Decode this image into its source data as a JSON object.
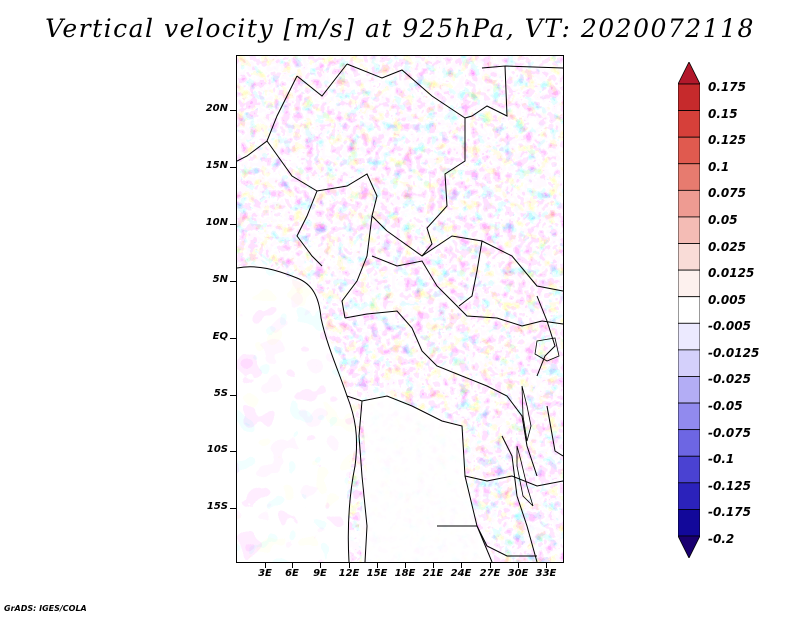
{
  "title": "Vertical velocity [m/s] at 925hPa, VT: 2020072118",
  "credit": "GrADS: IGES/COLA",
  "lat_labels": [
    "20N",
    "15N",
    "10N",
    "5N",
    "EQ",
    "5S",
    "10S",
    "15S"
  ],
  "lon_labels": [
    "3E",
    "6E",
    "9E",
    "12E",
    "15E",
    "18E",
    "21E",
    "24E",
    "27E",
    "30E",
    "33E"
  ],
  "colorbar": {
    "labels": [
      "0.175",
      "0.15",
      "0.125",
      "0.1",
      "0.075",
      "0.05",
      "0.025",
      "0.0125",
      "0.005",
      "-0.005",
      "-0.0125",
      "-0.025",
      "-0.05",
      "-0.075",
      "-0.1",
      "-0.125",
      "-0.175",
      "-0.2"
    ],
    "colors": [
      "#b2182b",
      "#c62a2c",
      "#d6403a",
      "#e05a4f",
      "#e77b6f",
      "#ee9b92",
      "#f4bcb5",
      "#f9dcd7",
      "#fdf1ee",
      "#ffffff",
      "#eceaff",
      "#d4d0fb",
      "#b3adf5",
      "#918aee",
      "#6d66e3",
      "#4a42d2",
      "#2b22bb",
      "#12089a",
      "#1a0070"
    ]
  }
}
